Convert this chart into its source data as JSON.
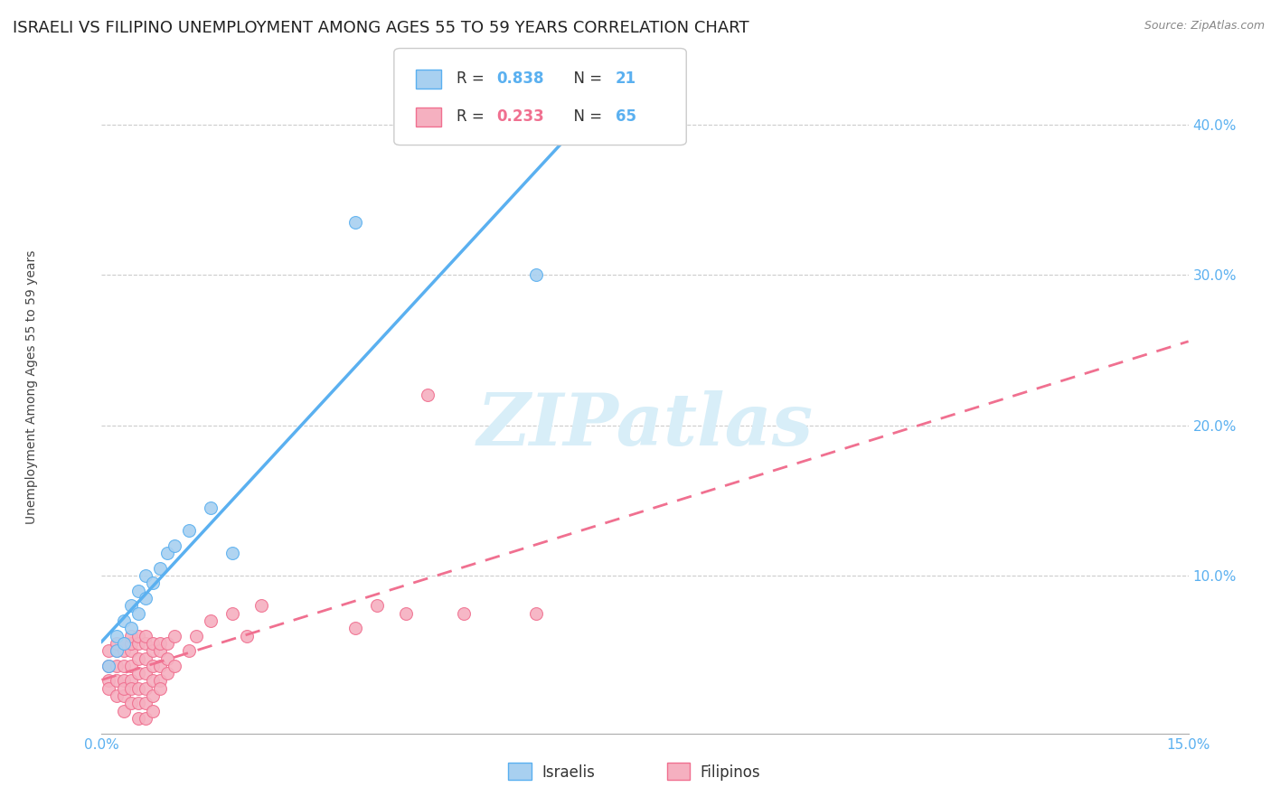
{
  "title": "ISRAELI VS FILIPINO UNEMPLOYMENT AMONG AGES 55 TO 59 YEARS CORRELATION CHART",
  "source": "Source: ZipAtlas.com",
  "ylabel": "Unemployment Among Ages 55 to 59 years",
  "xmin": 0.0,
  "xmax": 0.15,
  "ymin": -0.005,
  "ymax": 0.44,
  "yticks": [
    0.1,
    0.2,
    0.3,
    0.4
  ],
  "ytick_labels": [
    "10.0%",
    "20.0%",
    "30.0%",
    "40.0%"
  ],
  "israeli_R": 0.838,
  "israeli_N": 21,
  "filipino_R": 0.233,
  "filipino_N": 65,
  "israeli_color": "#a8d0f0",
  "filipino_color": "#f5b0c0",
  "israeli_line_color": "#5ab0f0",
  "filipino_line_color": "#f07090",
  "watermark": "ZIPatlas",
  "watermark_color": "#d8eef8",
  "israeli_scatter_x": [
    0.001,
    0.002,
    0.002,
    0.003,
    0.003,
    0.004,
    0.004,
    0.005,
    0.005,
    0.006,
    0.006,
    0.007,
    0.008,
    0.009,
    0.01,
    0.012,
    0.015,
    0.018,
    0.035,
    0.06,
    0.065
  ],
  "israeli_scatter_y": [
    0.04,
    0.05,
    0.06,
    0.055,
    0.07,
    0.065,
    0.08,
    0.075,
    0.09,
    0.085,
    0.1,
    0.095,
    0.105,
    0.115,
    0.12,
    0.13,
    0.145,
    0.115,
    0.335,
    0.3,
    0.41
  ],
  "filipino_scatter_x": [
    0.001,
    0.001,
    0.001,
    0.001,
    0.002,
    0.002,
    0.002,
    0.002,
    0.002,
    0.003,
    0.003,
    0.003,
    0.003,
    0.003,
    0.003,
    0.003,
    0.004,
    0.004,
    0.004,
    0.004,
    0.004,
    0.004,
    0.004,
    0.005,
    0.005,
    0.005,
    0.005,
    0.005,
    0.005,
    0.005,
    0.006,
    0.006,
    0.006,
    0.006,
    0.006,
    0.006,
    0.006,
    0.007,
    0.007,
    0.007,
    0.007,
    0.007,
    0.007,
    0.008,
    0.008,
    0.008,
    0.008,
    0.008,
    0.009,
    0.009,
    0.009,
    0.01,
    0.01,
    0.012,
    0.013,
    0.015,
    0.018,
    0.02,
    0.022,
    0.035,
    0.038,
    0.042,
    0.05,
    0.06,
    0.045
  ],
  "filipino_scatter_y": [
    0.03,
    0.04,
    0.05,
    0.025,
    0.03,
    0.04,
    0.05,
    0.02,
    0.055,
    0.02,
    0.03,
    0.04,
    0.05,
    0.025,
    0.055,
    0.01,
    0.03,
    0.04,
    0.05,
    0.025,
    0.055,
    0.015,
    0.06,
    0.025,
    0.035,
    0.045,
    0.055,
    0.015,
    0.06,
    0.005,
    0.025,
    0.035,
    0.045,
    0.055,
    0.015,
    0.06,
    0.005,
    0.03,
    0.04,
    0.05,
    0.02,
    0.055,
    0.01,
    0.03,
    0.04,
    0.05,
    0.025,
    0.055,
    0.035,
    0.045,
    0.055,
    0.04,
    0.06,
    0.05,
    0.06,
    0.07,
    0.075,
    0.06,
    0.08,
    0.065,
    0.08,
    0.075,
    0.075,
    0.075,
    0.22
  ],
  "grid_color": "#cccccc",
  "background_color": "#ffffff",
  "title_fontsize": 13,
  "axis_label_fontsize": 10,
  "tick_fontsize": 11,
  "legend_fontsize": 12
}
